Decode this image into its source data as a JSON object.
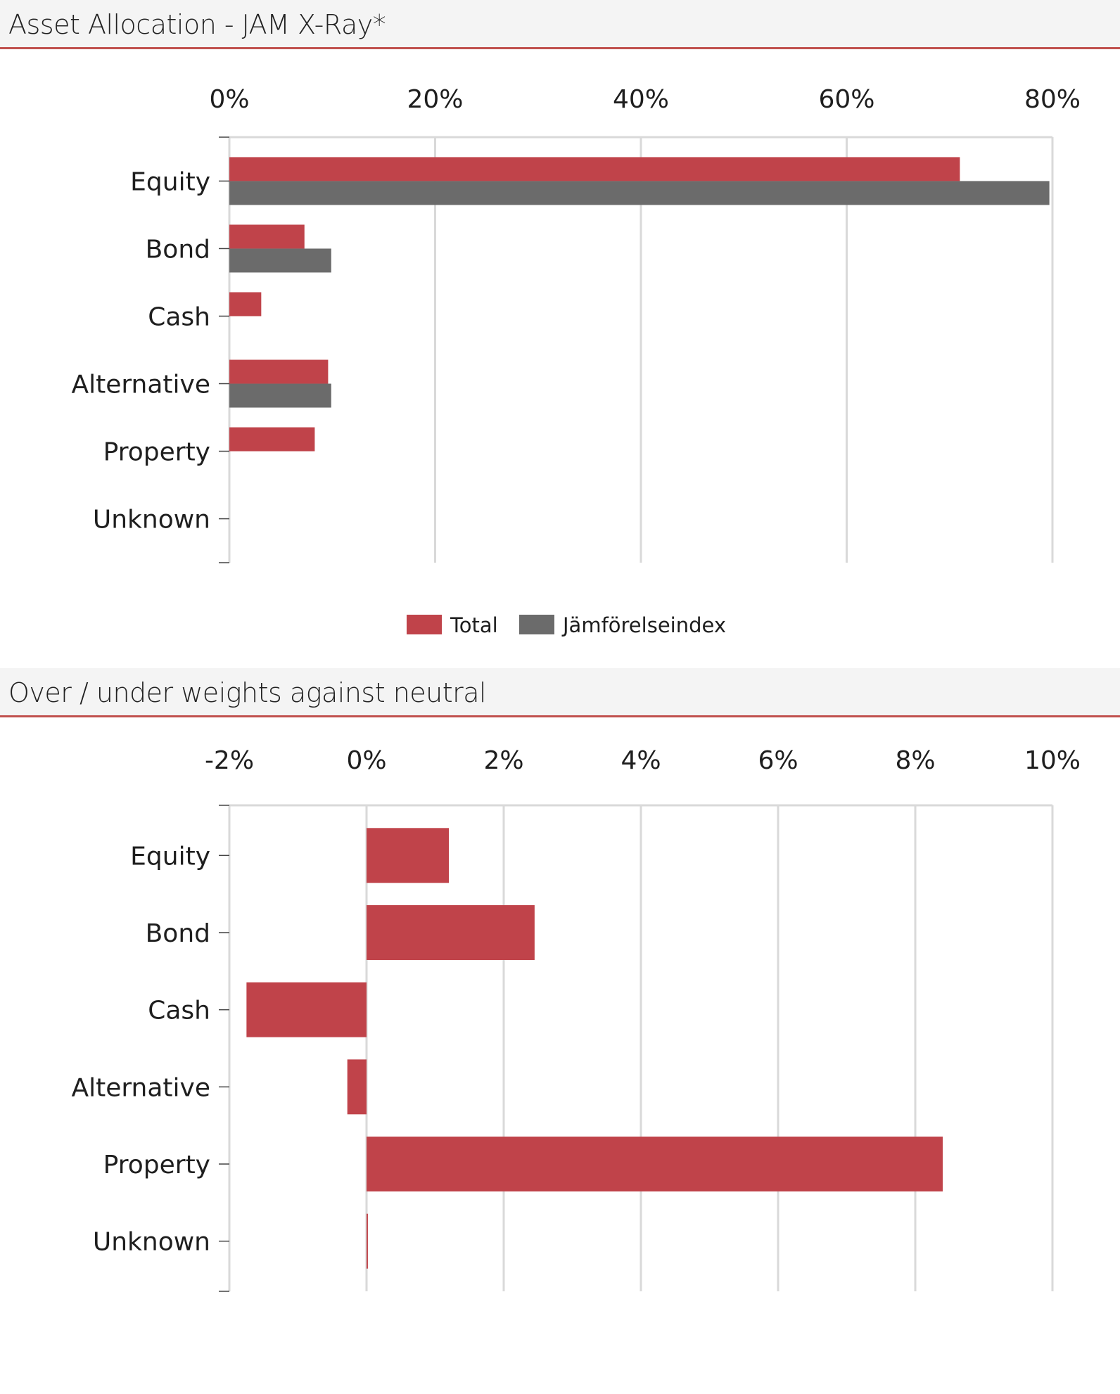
{
  "colors": {
    "accent": "#c0504d",
    "total": "#c0434a",
    "benchmark": "#6b6b6b",
    "grid": "#d9d9d9",
    "header_bg": "#f4f4f4"
  },
  "sections": [
    {
      "title": "Asset Allocation - JAM X-Ray*"
    },
    {
      "title": "Over / under weights against neutral"
    }
  ],
  "chart_data": [
    {
      "type": "bar",
      "orientation": "horizontal",
      "categories": [
        "Equity",
        "Bond",
        "Cash",
        "Alternative",
        "Property",
        "Unknown"
      ],
      "series": [
        {
          "name": "Total",
          "values": [
            71.0,
            7.3,
            3.1,
            9.6,
            8.3,
            0
          ]
        },
        {
          "name": "Jämförelseindex",
          "values": [
            79.7,
            9.9,
            0,
            9.9,
            0,
            0
          ]
        }
      ],
      "xlim": [
        0,
        80
      ],
      "x_ticks": [
        "0%",
        "20%",
        "40%",
        "60%",
        "80%"
      ],
      "x_axis_position": "top",
      "grid": true,
      "legend": "bottom-center"
    },
    {
      "type": "bar",
      "orientation": "horizontal",
      "categories": [
        "Equity",
        "Bond",
        "Cash",
        "Alternative",
        "Property",
        "Unknown"
      ],
      "series": [
        {
          "name": "",
          "values": [
            1.2,
            2.45,
            -1.75,
            -0.28,
            8.4,
            0.02
          ]
        }
      ],
      "xlim": [
        -2,
        10
      ],
      "x_ticks": [
        "-2%",
        "0%",
        "2%",
        "4%",
        "6%",
        "8%",
        "10%"
      ],
      "x_axis_position": "top",
      "grid": true,
      "legend": "none"
    }
  ]
}
